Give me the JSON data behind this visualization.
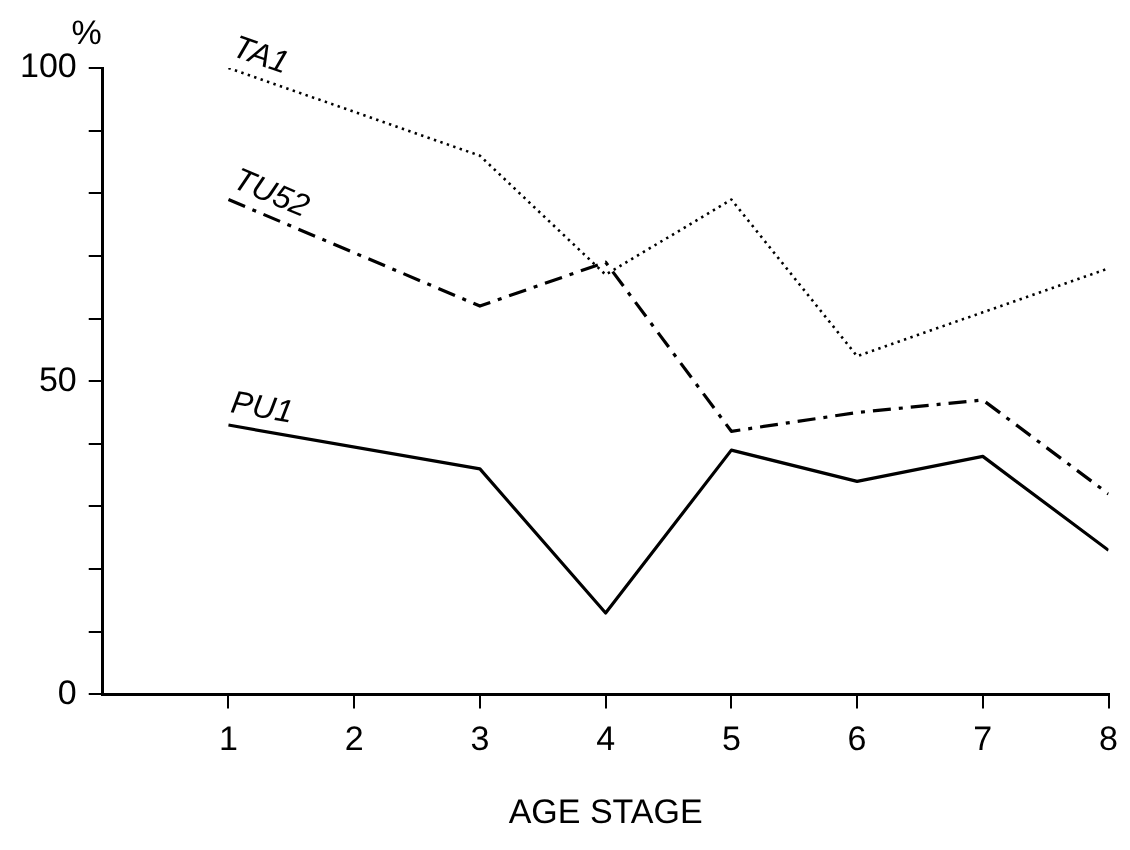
{
  "chart_data": {
    "type": "line",
    "xlabel": "AGE STAGE",
    "ylabel": "%",
    "x": [
      1,
      3,
      4,
      5,
      6,
      7,
      8
    ],
    "series": [
      {
        "name": "TA1",
        "color": "#000000",
        "line_style": "dotted",
        "values": [
          100,
          86,
          67,
          79,
          54,
          61,
          68
        ]
      },
      {
        "name": "TU52",
        "color": "#000000",
        "line_style": "dashed",
        "values": [
          79,
          62,
          69,
          42,
          45,
          47,
          32
        ]
      },
      {
        "name": "PU1",
        "color": "#000000",
        "line_style": "solid",
        "values": [
          43,
          36,
          13,
          39,
          34,
          38,
          23
        ]
      }
    ],
    "xlim": [
      0,
      8
    ],
    "xticks": [
      1,
      2,
      3,
      4,
      5,
      6,
      7,
      8
    ],
    "ylim": [
      0,
      100
    ],
    "yticks": [
      {
        "value": 0,
        "label": "0"
      },
      {
        "value": 10,
        "label": null
      },
      {
        "value": 20,
        "label": null
      },
      {
        "value": 30,
        "label": null
      },
      {
        "value": 40,
        "label": null
      },
      50,
      {
        "value": 60,
        "label": null
      },
      {
        "value": 70,
        "label": null
      },
      {
        "value": 80,
        "label": null
      },
      {
        "value": 90,
        "label": null
      },
      100
    ],
    "grid": false,
    "legend": false,
    "marker": "none"
  }
}
